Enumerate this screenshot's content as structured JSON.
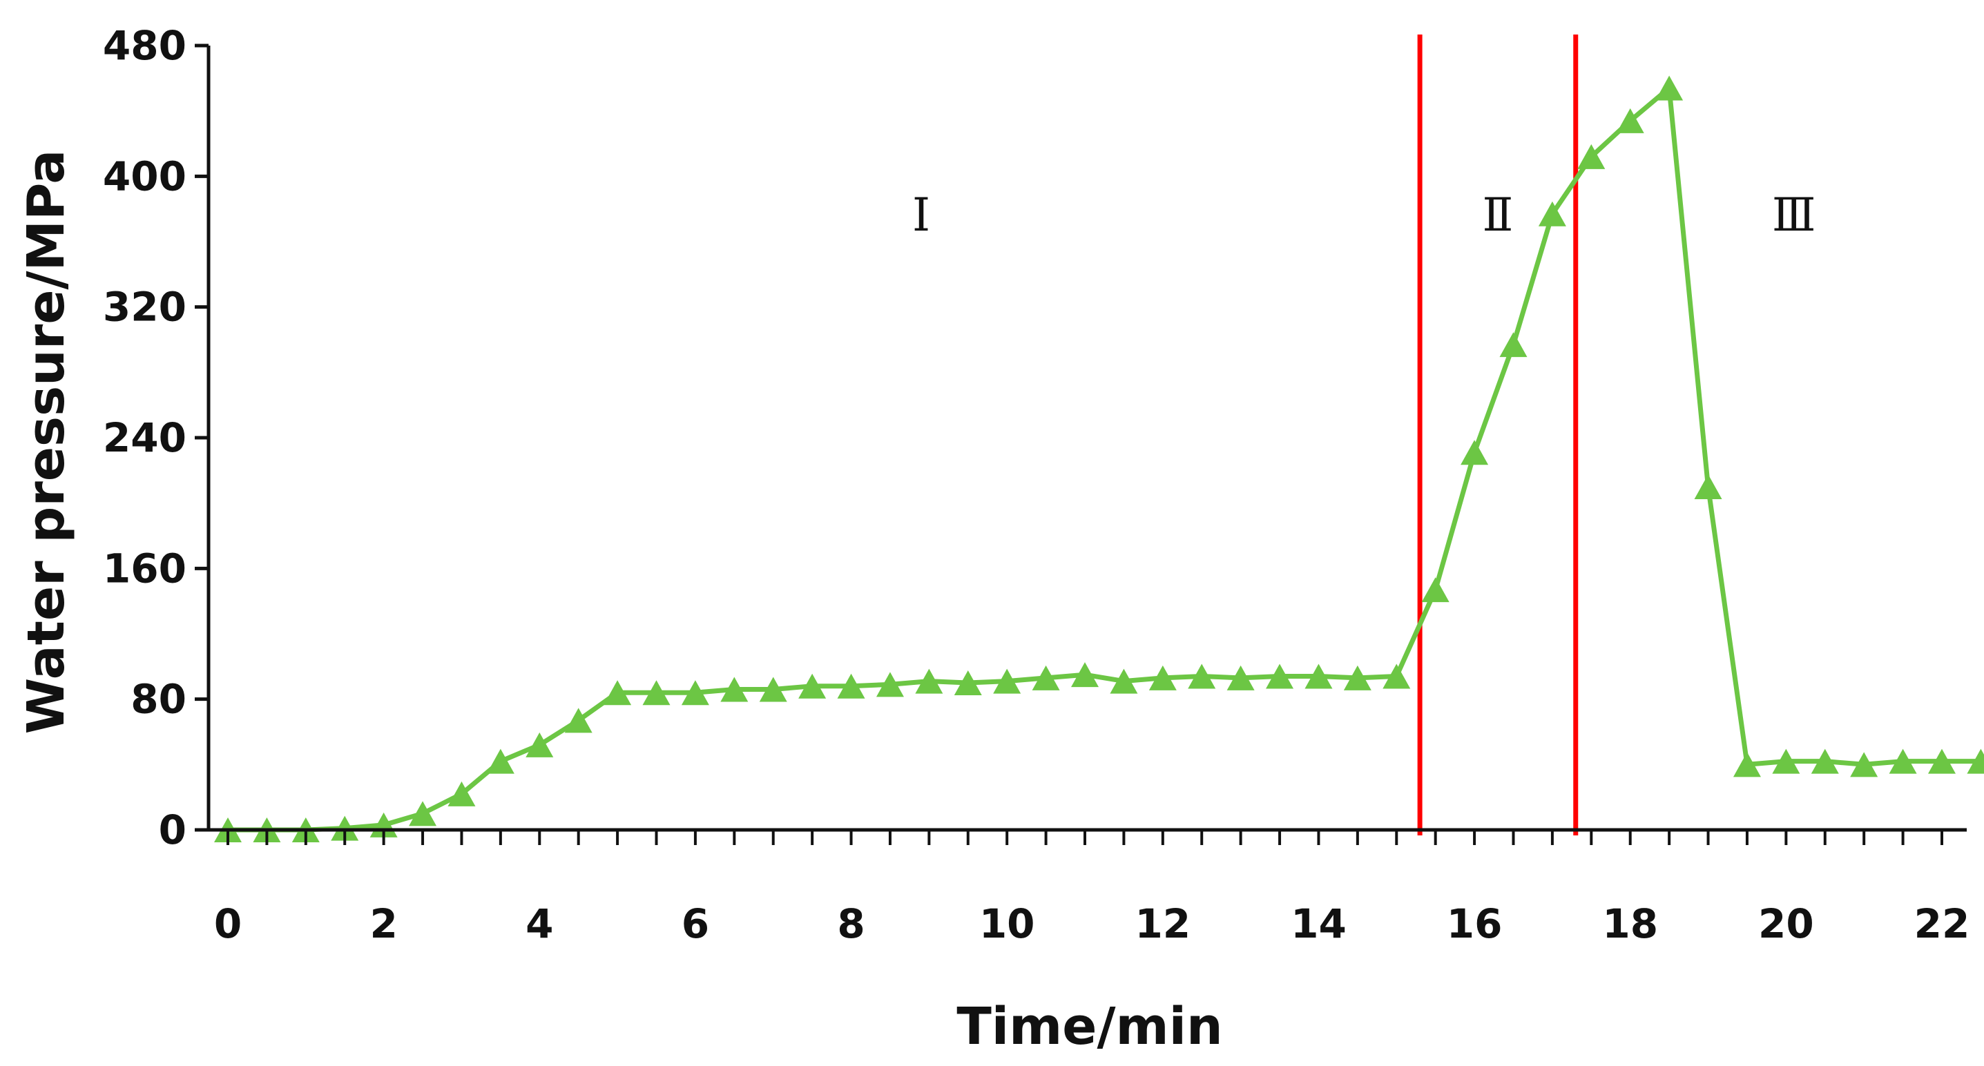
{
  "chart_data": {
    "type": "line",
    "title": "",
    "xlabel": "Time/min",
    "ylabel": "Water pressure/MPa",
    "xlim": [
      0,
      23
    ],
    "ylim": [
      0,
      480
    ],
    "x_ticks": [
      "0",
      "2",
      "4",
      "6",
      "8",
      "10",
      "12",
      "14",
      "16",
      "18",
      "20",
      "22"
    ],
    "y_ticks": [
      "0",
      "80",
      "160",
      "240",
      "320",
      "400",
      "480"
    ],
    "grid": false,
    "legend": "none",
    "marker": "triangle",
    "series": [
      {
        "color": "#6cc644",
        "points": [
          [
            0.0,
            0
          ],
          [
            0.5,
            0
          ],
          [
            1.0,
            0
          ],
          [
            1.5,
            1
          ],
          [
            2.0,
            3
          ],
          [
            2.5,
            10
          ],
          [
            3.0,
            22
          ],
          [
            3.5,
            42
          ],
          [
            4.0,
            52
          ],
          [
            4.5,
            67
          ],
          [
            5.0,
            84
          ],
          [
            5.5,
            84
          ],
          [
            6.0,
            84
          ],
          [
            6.5,
            86
          ],
          [
            7.0,
            86
          ],
          [
            7.5,
            88
          ],
          [
            8.0,
            88
          ],
          [
            8.5,
            89
          ],
          [
            9.0,
            91
          ],
          [
            9.5,
            90
          ],
          [
            10.0,
            91
          ],
          [
            10.5,
            93
          ],
          [
            11.0,
            95
          ],
          [
            11.5,
            91
          ],
          [
            12.0,
            93
          ],
          [
            12.5,
            94
          ],
          [
            13.0,
            93
          ],
          [
            13.5,
            94
          ],
          [
            14.0,
            94
          ],
          [
            14.5,
            93
          ],
          [
            15.0,
            94
          ],
          [
            15.5,
            147
          ],
          [
            16.0,
            231
          ],
          [
            16.5,
            297
          ],
          [
            17.0,
            377
          ],
          [
            17.5,
            412
          ],
          [
            18.0,
            434
          ],
          [
            18.5,
            454
          ],
          [
            19.0,
            210
          ],
          [
            19.5,
            40
          ],
          [
            20.0,
            42
          ],
          [
            20.5,
            42
          ],
          [
            21.0,
            40
          ],
          [
            21.5,
            42
          ],
          [
            22.0,
            42
          ],
          [
            22.5,
            42
          ]
        ]
      }
    ],
    "boundaries": [
      {
        "x": 15.3,
        "color": "#ff0000"
      },
      {
        "x": 17.3,
        "color": "#ff0000"
      }
    ],
    "regions": [
      {
        "label": "Ⅰ",
        "x": 8.9,
        "y": 376
      },
      {
        "label": "Ⅱ",
        "x": 16.3,
        "y": 376
      },
      {
        "label": "Ⅲ",
        "x": 20.1,
        "y": 376
      }
    ]
  }
}
